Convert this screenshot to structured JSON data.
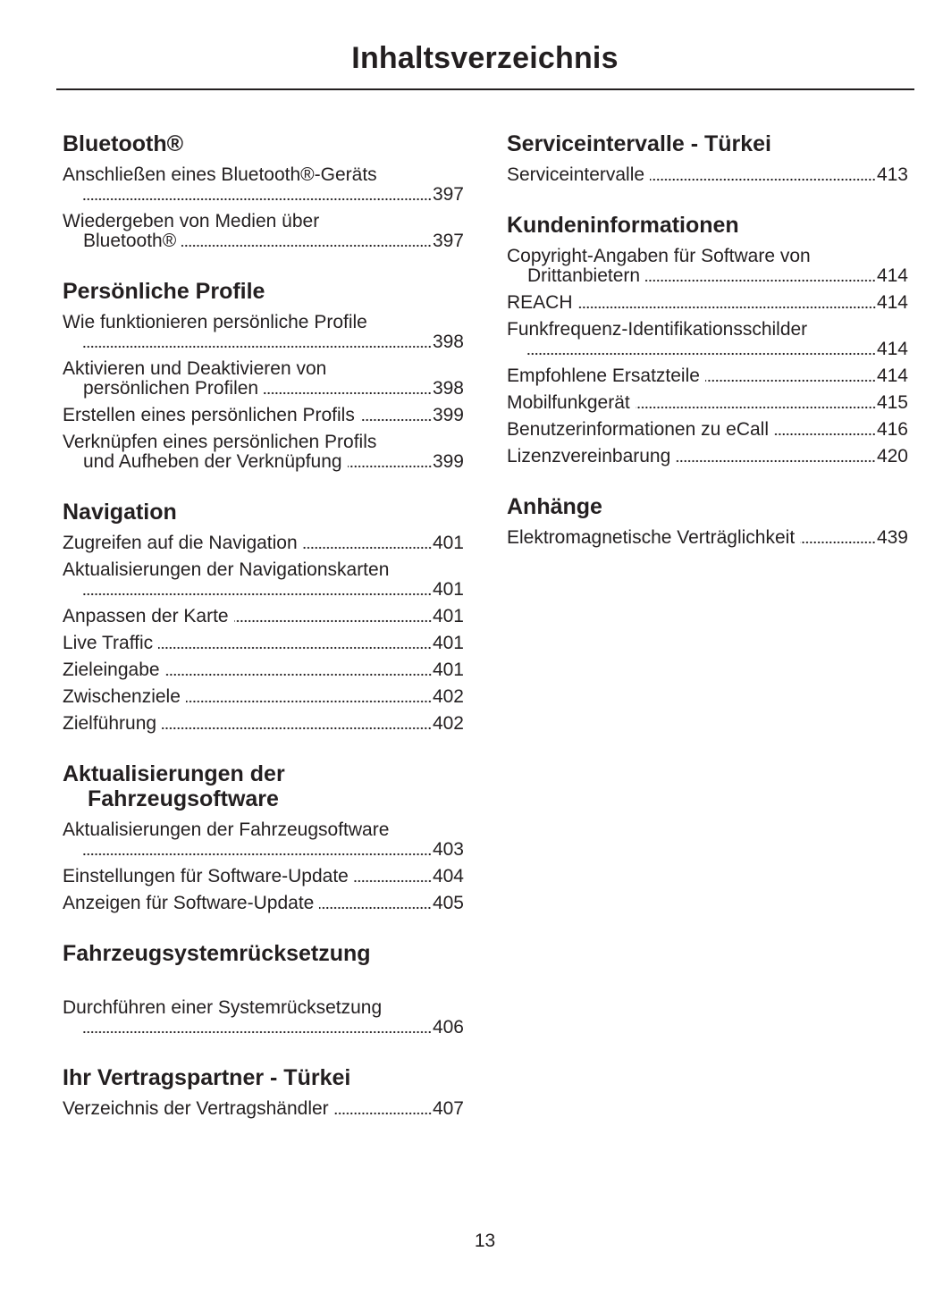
{
  "title": "Inhaltsverzeichnis",
  "page_number": "13",
  "left_column": [
    {
      "heading": [
        "Bluetooth®"
      ],
      "entries": [
        {
          "lines": [
            "Anschließen eines Bluetooth®-Geräts",
            ""
          ],
          "page": "397"
        },
        {
          "lines": [
            "Wiedergeben von Medien über",
            "Bluetooth®"
          ],
          "page": "397"
        }
      ]
    },
    {
      "heading": [
        "Persönliche Profile"
      ],
      "entries": [
        {
          "lines": [
            "Wie funktionieren persönliche Profile",
            ""
          ],
          "page": "398"
        },
        {
          "lines": [
            "Aktivieren und Deaktivieren von",
            "persönlichen Profilen"
          ],
          "page": "398"
        },
        {
          "lines": [
            "Erstellen eines persönlichen Profils"
          ],
          "page": "399"
        },
        {
          "lines": [
            "Verknüpfen eines persönlichen Profils",
            "und Aufheben der Verknüpfung"
          ],
          "page": "399"
        }
      ]
    },
    {
      "heading": [
        "Navigation"
      ],
      "entries": [
        {
          "lines": [
            "Zugreifen auf die Navigation"
          ],
          "page": "401"
        },
        {
          "lines": [
            "Aktualisierungen der Navigationskarten",
            ""
          ],
          "page": "401"
        },
        {
          "lines": [
            "Anpassen der Karte"
          ],
          "page": "401"
        },
        {
          "lines": [
            "Live Traffic"
          ],
          "page": "401"
        },
        {
          "lines": [
            "Zieleingabe"
          ],
          "page": "401"
        },
        {
          "lines": [
            "Zwischenziele"
          ],
          "page": "402"
        },
        {
          "lines": [
            "Zielführung"
          ],
          "page": "402"
        }
      ]
    },
    {
      "heading": [
        "Aktualisierungen der",
        "Fahrzeugsoftware"
      ],
      "entries": [
        {
          "lines": [
            "Aktualisierungen der Fahrzeugsoftware",
            ""
          ],
          "page": "403"
        },
        {
          "lines": [
            "Einstellungen für Software-Update"
          ],
          "page": "404"
        },
        {
          "lines": [
            "Anzeigen für Software-Update"
          ],
          "page": "405"
        }
      ]
    },
    {
      "heading": [
        "Fahrzeugsystemrücksetzung"
      ],
      "extra_space": true,
      "entries": [
        {
          "lines": [
            "Durchführen einer Systemrücksetzung",
            ""
          ],
          "page": "406"
        }
      ]
    },
    {
      "heading": [
        "Ihr Vertragspartner - Türkei"
      ],
      "entries": [
        {
          "lines": [
            "Verzeichnis der Vertragshändler"
          ],
          "page": "407"
        }
      ]
    }
  ],
  "right_column": [
    {
      "heading": [
        "Serviceintervalle - Türkei"
      ],
      "entries": [
        {
          "lines": [
            "Serviceintervalle"
          ],
          "page": "413"
        }
      ]
    },
    {
      "heading": [
        "Kundeninformationen"
      ],
      "entries": [
        {
          "lines": [
            "Copyright-Angaben für Software von",
            "Drittanbietern"
          ],
          "page": "414"
        },
        {
          "lines": [
            "REACH"
          ],
          "page": "414"
        },
        {
          "lines": [
            "Funkfrequenz-Identifikationsschilder",
            ""
          ],
          "page": "414"
        },
        {
          "lines": [
            "Empfohlene Ersatzteile"
          ],
          "page": "414"
        },
        {
          "lines": [
            "Mobilfunkgerät"
          ],
          "page": "415"
        },
        {
          "lines": [
            "Benutzerinformationen zu eCall"
          ],
          "page": "416"
        },
        {
          "lines": [
            "Lizenzvereinbarung"
          ],
          "page": "420"
        }
      ]
    },
    {
      "heading": [
        "Anhänge"
      ],
      "entries": [
        {
          "lines": [
            "Elektromagnetische Verträglichkeit"
          ],
          "page": "439"
        }
      ]
    }
  ]
}
